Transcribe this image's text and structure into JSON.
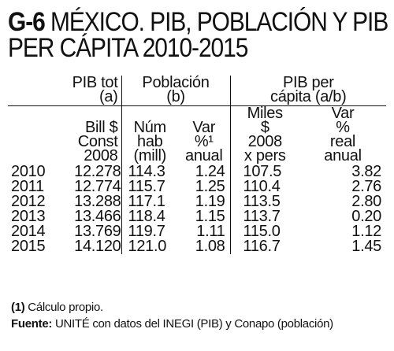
{
  "title": {
    "code": "G-6",
    "line1": "MÉXICO. PIB, POBLACIÓN Y PIB",
    "line2": "PER CÁPITA 2010-2015"
  },
  "groups": {
    "pib_tot": [
      "PIB tot",
      "(a)"
    ],
    "poblacion": [
      "Población",
      "(b)"
    ],
    "pib_per_capita": [
      "PIB per",
      "cápita (a/b)"
    ]
  },
  "units": {
    "pib": [
      "Bill $",
      "Const",
      "2008"
    ],
    "num_hab": [
      "Núm",
      "hab",
      "(mill)"
    ],
    "var_pob": [
      "Var",
      "%¹",
      "anual"
    ],
    "miles": [
      "Miles",
      "$",
      "2008",
      "x pers"
    ],
    "var_real": [
      "Var",
      "%",
      "real",
      "anual"
    ]
  },
  "rows": [
    {
      "year": "2010",
      "pib": "12.278",
      "num_hab": "114.3",
      "var_pob": "1.24",
      "miles": "107.5",
      "var_real": "3.82"
    },
    {
      "year": "2011",
      "pib": "12.774",
      "num_hab": "115.7",
      "var_pob": "1.25",
      "miles": "110.4",
      "var_real": "2.76"
    },
    {
      "year": "2012",
      "pib": "13.288",
      "num_hab": "117.1",
      "var_pob": "1.19",
      "miles": "113.5",
      "var_real": "2.80"
    },
    {
      "year": "2013",
      "pib": "13.466",
      "num_hab": "118.4",
      "var_pob": "1.15",
      "miles": "113.7",
      "var_real": "0.20"
    },
    {
      "year": "2014",
      "pib": "13.769",
      "num_hab": "119.7",
      "var_pob": "1.11",
      "miles": "115.0",
      "var_real": "1.12"
    },
    {
      "year": "2015",
      "pib": "14.120",
      "num_hab": "121.0",
      "var_pob": "1.08",
      "miles": "116.7",
      "var_real": "1.45"
    }
  ],
  "notes": {
    "footnote_mark": "(1)",
    "footnote_text": " Cálculo propio.",
    "source_label": "Fuente:",
    "source_text": " UNITÉ con datos del INEGI (PIB) y Conapo (población)"
  }
}
